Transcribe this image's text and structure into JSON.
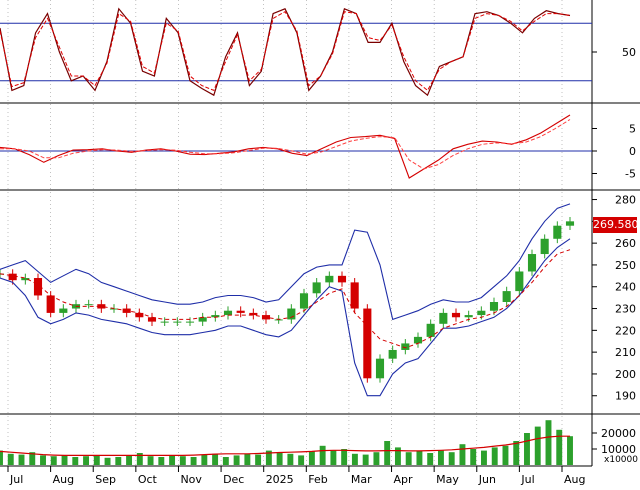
{
  "colors": {
    "up_candle": "#2ca02c",
    "down_candle": "#d40000",
    "bollinger_band": "#1f2ea8",
    "bollinger_mid": "#d40000",
    "stoch_k": "#7a0000",
    "stoch_d": "#e00000",
    "macd_line": "#d40000",
    "macd_signal": "#ff4040",
    "guide_line": "#1f2ea8",
    "volume": "#2ca02c",
    "volume_ma": "#d40000",
    "price_badge_bg": "#d40000"
  },
  "last_price_label": "269.580",
  "volume_multiplier_label": "x10000",
  "chart_data": [
    {
      "type": "line",
      "panel": "stochastic",
      "y_ticks": [
        "50"
      ],
      "ylim": [
        0,
        100
      ],
      "guide_levels": [
        20,
        80
      ],
      "series": [
        {
          "values": [
            75,
            10,
            15,
            70,
            90,
            50,
            20,
            25,
            10,
            40,
            95,
            80,
            30,
            25,
            85,
            70,
            20,
            12,
            5,
            45,
            70,
            15,
            30,
            90,
            95,
            70,
            10,
            25,
            50,
            95,
            90,
            60,
            60,
            80,
            40,
            15,
            5,
            35,
            40,
            45,
            90,
            92,
            88,
            80,
            70,
            85,
            93,
            90,
            88
          ]
        },
        {
          "values": [
            72,
            14,
            18,
            65,
            85,
            55,
            25,
            25,
            15,
            38,
            90,
            82,
            35,
            28,
            80,
            72,
            25,
            15,
            10,
            40,
            68,
            20,
            32,
            85,
            92,
            72,
            15,
            25,
            48,
            92,
            90,
            65,
            62,
            78,
            45,
            20,
            10,
            32,
            40,
            45,
            85,
            90,
            88,
            82,
            72,
            82,
            90,
            90,
            88
          ]
        }
      ]
    },
    {
      "type": "line",
      "panel": "macd",
      "y_ticks": [
        "5",
        "0",
        "-5"
      ],
      "ylim": [
        -8,
        10
      ],
      "series": [
        {
          "values": [
            0.8,
            0.5,
            -0.8,
            -2.5,
            -1.0,
            0.2,
            0.3,
            0.5,
            0,
            -0.3,
            0.2,
            0.5,
            0,
            -0.7,
            -0.8,
            -0.5,
            -0.2,
            0.5,
            0.8,
            0.5,
            -0.5,
            -1.0,
            0.5,
            2.0,
            3.0,
            3.2,
            3.5,
            2.8,
            -6.0,
            -4.0,
            -2.0,
            0.5,
            1.5,
            2.2,
            2.0,
            1.5,
            2.5,
            4.0,
            6.0,
            8.0
          ]
        },
        {
          "values": [
            0.5,
            0.5,
            0,
            -1.5,
            -1.5,
            -0.5,
            0,
            0.3,
            0.2,
            -0.1,
            0.1,
            0.3,
            0.2,
            -0.3,
            -0.6,
            -0.6,
            -0.4,
            0.1,
            0.6,
            0.6,
            0,
            -0.7,
            -0.2,
            1.0,
            2.2,
            2.8,
            3.2,
            3.0,
            -2.0,
            -4.0,
            -3.0,
            -1.0,
            0.5,
            1.5,
            1.8,
            1.6,
            2.0,
            3.2,
            5.0,
            7.0
          ]
        }
      ]
    },
    {
      "type": "line",
      "panel": "price",
      "y_ticks": [
        "280",
        "270",
        "260",
        "250",
        "240",
        "230",
        "220",
        "210",
        "200",
        "190"
      ],
      "ylim": [
        183,
        283
      ],
      "series": [
        {
          "values": [
            246,
            243,
            244,
            236,
            228,
            230,
            232,
            232,
            230,
            230,
            228,
            226,
            224,
            224,
            224,
            224,
            226,
            227,
            229,
            228,
            227,
            225,
            225,
            230,
            237,
            242,
            245,
            242,
            230,
            198,
            207,
            211,
            214,
            217,
            223,
            228,
            226,
            227,
            229,
            233,
            238,
            247,
            255,
            262,
            268,
            270
          ]
        },
        {
          "values": [
            248,
            250,
            252,
            247,
            242,
            245,
            248,
            246,
            242,
            240,
            238,
            236,
            234,
            233,
            232,
            232,
            233,
            235,
            236,
            236,
            235,
            233,
            234,
            240,
            246,
            249,
            250,
            250,
            266,
            265,
            250,
            225,
            227,
            229,
            232,
            234,
            233,
            233,
            235,
            240,
            245,
            252,
            262,
            270,
            276,
            278
          ]
        },
        {
          "values": [
            244,
            242,
            236,
            226,
            223,
            225,
            228,
            227,
            225,
            224,
            223,
            221,
            219,
            218,
            218,
            218,
            219,
            220,
            222,
            222,
            220,
            218,
            217,
            220,
            227,
            234,
            240,
            238,
            205,
            190,
            190,
            200,
            205,
            207,
            214,
            221,
            221,
            222,
            224,
            226,
            230,
            236,
            244,
            252,
            258,
            262
          ]
        },
        {
          "values": [
            246,
            245,
            244,
            241,
            236,
            233,
            231,
            231,
            231,
            230,
            229,
            228,
            226,
            225,
            225,
            225,
            226,
            226,
            227,
            227,
            227,
            226,
            225,
            226,
            229,
            233,
            237,
            239,
            228,
            222,
            216,
            214,
            212,
            214,
            217,
            221,
            223,
            225,
            226,
            228,
            231,
            236,
            242,
            249,
            255,
            257
          ]
        }
      ]
    },
    {
      "type": "bar",
      "panel": "volume",
      "y_ticks": [
        "20000",
        "10000"
      ],
      "ylim": [
        0,
        30000
      ],
      "values": [
        9000,
        7000,
        6500,
        8000,
        6000,
        5500,
        6000,
        5000,
        5500,
        6000,
        4500,
        5000,
        6000,
        7500,
        5500,
        5000,
        6000,
        5500,
        5000,
        6500,
        7000,
        5000,
        6000,
        7000,
        6500,
        9000,
        8000,
        7000,
        6000,
        8500,
        12000,
        9000,
        10000,
        7000,
        6500,
        8000,
        15000,
        11000,
        8000,
        9000,
        7500,
        9000,
        8000,
        13000,
        10000,
        9000,
        11000,
        12000,
        15000,
        20000,
        24000,
        28000,
        22000,
        18000
      ],
      "ma_values": [
        8500,
        8000,
        7500,
        7000,
        6500,
        6200,
        6000,
        6000,
        6000,
        6000,
        6000,
        6000,
        6000,
        6000,
        6000,
        6000,
        6000,
        6000,
        6200,
        6500,
        6800,
        7000,
        7000,
        7000,
        7200,
        7500,
        7800,
        8000,
        8200,
        8500,
        9000,
        9200,
        9200,
        9000,
        8800,
        8800,
        9000,
        9000,
        8800,
        8800,
        9000,
        9200,
        9500,
        10000,
        10500,
        11000,
        11800,
        12500,
        13500,
        15000,
        16500,
        17500,
        18000,
        18000
      ]
    }
  ],
  "x_axis": {
    "months": [
      "Jul",
      "Aug",
      "Sep",
      "Oct",
      "Nov",
      "Dec",
      "2025",
      "Feb",
      "Mar",
      "Apr",
      "May",
      "Jun",
      "Jul",
      "Aug"
    ]
  }
}
